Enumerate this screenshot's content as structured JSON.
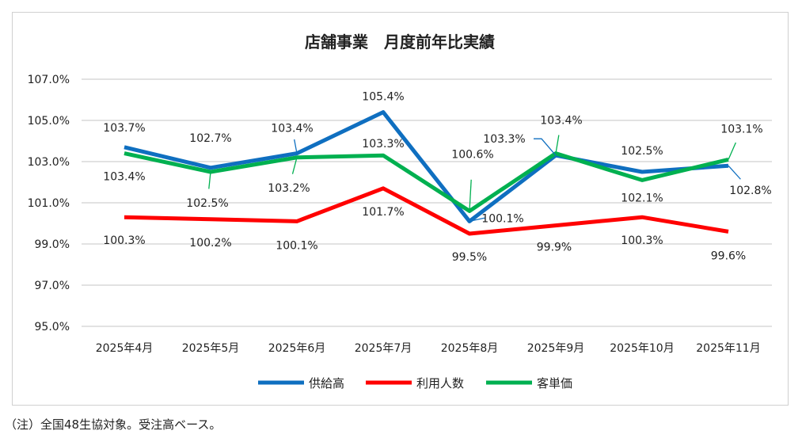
{
  "note": "（注）全国48生協対象。受注高ベース。",
  "chart_data": {
    "type": "line",
    "title": "店舗事業　月度前年比実績",
    "categories": [
      "2025年4月",
      "2025年5月",
      "2025年6月",
      "2025年7月",
      "2025年8月",
      "2025年9月",
      "2025年10月",
      "2025年11月"
    ],
    "ylim": [
      95,
      107
    ],
    "yticks": [
      "95.0%",
      "97.0%",
      "99.0%",
      "101.0%",
      "103.0%",
      "105.0%",
      "107.0%"
    ],
    "grid": true,
    "legend_position": "bottom",
    "series": [
      {
        "name": "供給高",
        "color": "#0f6fc0",
        "values": [
          103.7,
          102.7,
          103.4,
          105.4,
          100.1,
          103.3,
          102.5,
          102.8
        ],
        "labels": [
          "103.7%",
          "102.7%",
          "103.4%",
          "105.4%",
          "100.1%",
          "103.3%",
          "102.5%",
          "102.8%"
        ]
      },
      {
        "name": "利用人数",
        "color": "#ff0000",
        "values": [
          100.3,
          100.2,
          100.1,
          101.7,
          99.5,
          99.9,
          100.3,
          99.6
        ],
        "labels": [
          "100.3%",
          "100.2%",
          "100.1%",
          "101.7%",
          "99.5%",
          "99.9%",
          "100.3%",
          "99.6%"
        ]
      },
      {
        "name": "客単価",
        "color": "#00b050",
        "values": [
          103.4,
          102.5,
          103.2,
          103.3,
          100.6,
          103.4,
          102.1,
          103.1
        ],
        "labels": [
          "103.4%",
          "102.5%",
          "103.2%",
          "103.3%",
          "100.6%",
          "103.4%",
          "102.1%",
          "103.1%"
        ]
      }
    ]
  }
}
